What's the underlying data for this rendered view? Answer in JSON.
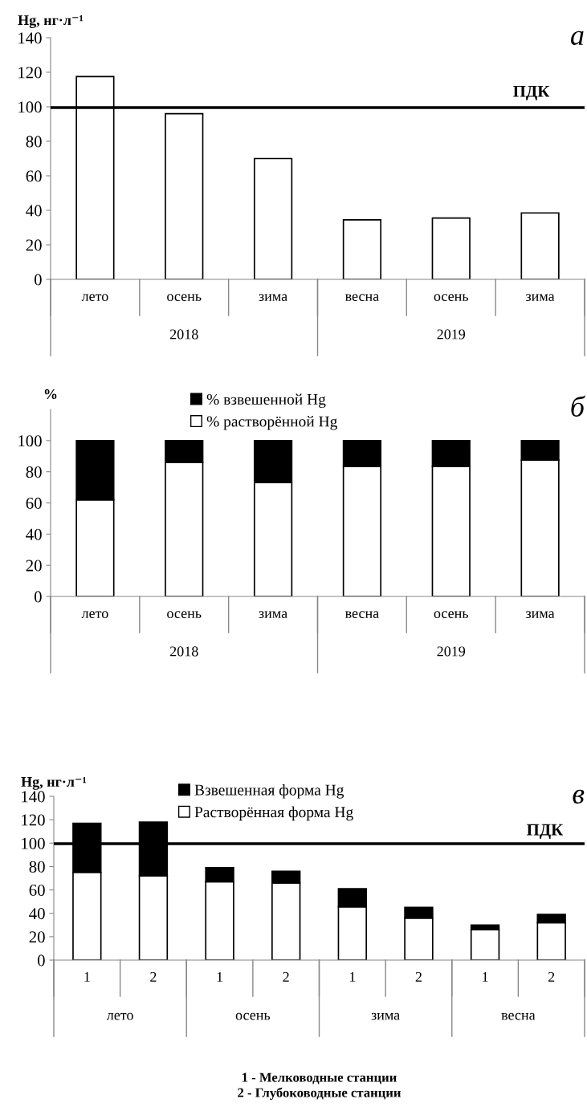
{
  "chart_data": [
    {
      "type": "bar",
      "title": "а",
      "ylabel": "Hg, нг·л⁻¹",
      "categories": [
        "лето",
        "осень",
        "зима",
        "весна",
        "осень",
        "зима"
      ],
      "series": [
        {
          "color": "#ffffff",
          "values": [
            117.5,
            96,
            70,
            34.5,
            35.5,
            38.5
          ]
        }
      ],
      "ylim": [
        0,
        140
      ],
      "yticks": [
        0,
        20,
        40,
        60,
        80,
        100,
        120,
        140
      ],
      "grid": false,
      "legend": false,
      "ref_lines": [
        {
          "axis": "y",
          "value": 99.5,
          "label": "ПДК",
          "color": "#000000"
        }
      ],
      "annotations": [
        "2018",
        "2019"
      ]
    },
    {
      "type": "bar",
      "title": "б",
      "ylabel": "%",
      "categories": [
        "лето",
        "осень",
        "зима",
        "весна",
        "осень",
        "зима"
      ],
      "stacked": true,
      "series": [
        {
          "name": "% растворённой Hg",
          "color": "#ffffff",
          "values": [
            62,
            86,
            73,
            83.5,
            83.5,
            87.5
          ]
        },
        {
          "name": "% взвешенной Hg",
          "color": "#000000",
          "values": [
            38,
            14,
            27,
            16.5,
            16.5,
            12.5
          ]
        }
      ],
      "ylim": [
        0,
        120
      ],
      "yticks": [
        0,
        20,
        40,
        60,
        80,
        100
      ],
      "grid": false,
      "legend": "top",
      "annotations": [
        "2018",
        "2019"
      ]
    },
    {
      "type": "bar",
      "title": "в",
      "ylabel": "Hg, нг·л⁻¹",
      "xlabel": "1 - Мелководные станции\n2 - Глубоководные станции",
      "categories": [
        "1",
        "2",
        "1",
        "2",
        "1",
        "2",
        "1",
        "2"
      ],
      "stacked": true,
      "series": [
        {
          "name": "Растворённая форма Hg",
          "color": "#ffffff",
          "values": [
            75,
            72,
            67,
            66,
            45.5,
            36,
            26,
            32
          ]
        },
        {
          "name": "Взвешенная форма Hg",
          "color": "#000000",
          "values": [
            42,
            46,
            12,
            10,
            15.5,
            9,
            4,
            7
          ]
        }
      ],
      "ylim": [
        0,
        140
      ],
      "yticks": [
        0,
        20,
        40,
        60,
        80,
        100,
        120,
        140
      ],
      "grid": false,
      "legend": "top",
      "ref_lines": [
        {
          "axis": "y",
          "value": 99.5,
          "label": "ПДК",
          "color": "#000000"
        }
      ],
      "annotations": [
        "лето",
        "осень",
        "зима",
        "весна"
      ]
    }
  ]
}
